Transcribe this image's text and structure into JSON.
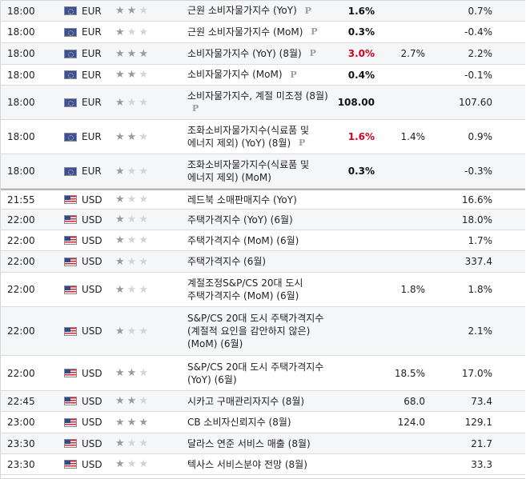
{
  "rows": [
    {
      "time": "18:00",
      "currency": "EUR",
      "flag": "flag-eu",
      "importance": 2,
      "event": "근원 소비자물가지수 (YoY)",
      "preliminary": true,
      "actual": "1.6%",
      "actual_color": "normal",
      "forecast": "",
      "previous": "0.7%"
    },
    {
      "time": "18:00",
      "currency": "EUR",
      "flag": "flag-eu",
      "importance": 1,
      "event": "근원 소비자물가지수 (MoM)",
      "preliminary": true,
      "actual": "0.3%",
      "actual_color": "normal",
      "forecast": "",
      "previous": "-0.4%"
    },
    {
      "time": "18:00",
      "currency": "EUR",
      "flag": "flag-eu",
      "importance": 3,
      "event": "소비자물가지수 (YoY) (8월)",
      "preliminary": true,
      "actual": "3.0%",
      "actual_color": "red",
      "forecast": "2.7%",
      "previous": "2.2%"
    },
    {
      "time": "18:00",
      "currency": "EUR",
      "flag": "flag-eu",
      "importance": 2,
      "event": "소비자물가지수 (MoM)",
      "preliminary": true,
      "actual": "0.4%",
      "actual_color": "normal",
      "forecast": "",
      "previous": "-0.1%"
    },
    {
      "time": "18:00",
      "currency": "EUR",
      "flag": "flag-eu",
      "importance": 1,
      "event": "소비자물가지수, 계절 미조정 (8월)",
      "preliminary": true,
      "actual": "108.00",
      "actual_color": "normal",
      "forecast": "",
      "previous": "107.60"
    },
    {
      "time": "18:00",
      "currency": "EUR",
      "flag": "flag-eu",
      "importance": 2,
      "event": "조화소비자물가지수(식료품 및 에너지 제외) (YoY) (8월)",
      "preliminary": true,
      "actual": "1.6%",
      "actual_color": "red",
      "forecast": "1.4%",
      "previous": "0.9%"
    },
    {
      "time": "18:00",
      "currency": "EUR",
      "flag": "flag-eu",
      "importance": 1,
      "event": "조화소비자물가지수(식료품 및 에너지 제외) (MoM)",
      "preliminary": false,
      "actual": "0.3%",
      "actual_color": "normal",
      "forecast": "",
      "previous": "-0.3%"
    },
    {
      "time": "21:55",
      "currency": "USD",
      "flag": "flag-us",
      "importance": 1,
      "event": "레드북 소매판매지수 (YoY)",
      "preliminary": false,
      "actual": "",
      "actual_color": "normal",
      "forecast": "",
      "previous": "16.6%"
    },
    {
      "time": "22:00",
      "currency": "USD",
      "flag": "flag-us",
      "importance": 1,
      "event": "주택가격지수 (YoY) (6월)",
      "preliminary": false,
      "actual": "",
      "actual_color": "normal",
      "forecast": "",
      "previous": "18.0%"
    },
    {
      "time": "22:00",
      "currency": "USD",
      "flag": "flag-us",
      "importance": 1,
      "event": "주택가격지수 (MoM) (6월)",
      "preliminary": false,
      "actual": "",
      "actual_color": "normal",
      "forecast": "",
      "previous": "1.7%"
    },
    {
      "time": "22:00",
      "currency": "USD",
      "flag": "flag-us",
      "importance": 1,
      "event": "주택가격지수 (6월)",
      "preliminary": false,
      "actual": "",
      "actual_color": "normal",
      "forecast": "",
      "previous": "337.4"
    },
    {
      "time": "22:00",
      "currency": "USD",
      "flag": "flag-us",
      "importance": 1,
      "event": "계절조정S&P/CS 20대 도시 주택가격지수 (MoM) (6월)",
      "preliminary": false,
      "actual": "",
      "actual_color": "normal",
      "forecast": "1.8%",
      "previous": "1.8%"
    },
    {
      "time": "22:00",
      "currency": "USD",
      "flag": "flag-us",
      "importance": 1,
      "event": "S&P/CS 20대 도시 주택가격지수(계절적 요인을 감안하지 않은) (MoM) (6월)",
      "preliminary": false,
      "actual": "",
      "actual_color": "normal",
      "forecast": "",
      "previous": "2.1%"
    },
    {
      "time": "22:00",
      "currency": "USD",
      "flag": "flag-us",
      "importance": 2,
      "event": "S&P/CS 20대 도시 주택가격지수 (YoY) (6월)",
      "preliminary": false,
      "actual": "",
      "actual_color": "normal",
      "forecast": "18.5%",
      "previous": "17.0%"
    },
    {
      "time": "22:45",
      "currency": "USD",
      "flag": "flag-us",
      "importance": 2,
      "event": "시카고 구매관리자지수 (8월)",
      "preliminary": false,
      "actual": "",
      "actual_color": "normal",
      "forecast": "68.0",
      "previous": "73.4"
    },
    {
      "time": "23:00",
      "currency": "USD",
      "flag": "flag-us",
      "importance": 3,
      "event": "CB 소비자신뢰지수 (8월)",
      "preliminary": false,
      "actual": "",
      "actual_color": "normal",
      "forecast": "124.0",
      "previous": "129.1"
    },
    {
      "time": "23:30",
      "currency": "USD",
      "flag": "flag-us",
      "importance": 1,
      "event": "달라스 연준 서비스 매출 (8월)",
      "preliminary": false,
      "actual": "",
      "actual_color": "normal",
      "forecast": "",
      "previous": "21.7"
    },
    {
      "time": "23:30",
      "currency": "USD",
      "flag": "flag-us",
      "importance": 1,
      "event": "텍사스 서비스분야 전망 (8월)",
      "preliminary": false,
      "actual": "",
      "actual_color": "normal",
      "forecast": "",
      "previous": "33.3"
    }
  ],
  "preliminary_marker": "P",
  "star_glyph": "★"
}
